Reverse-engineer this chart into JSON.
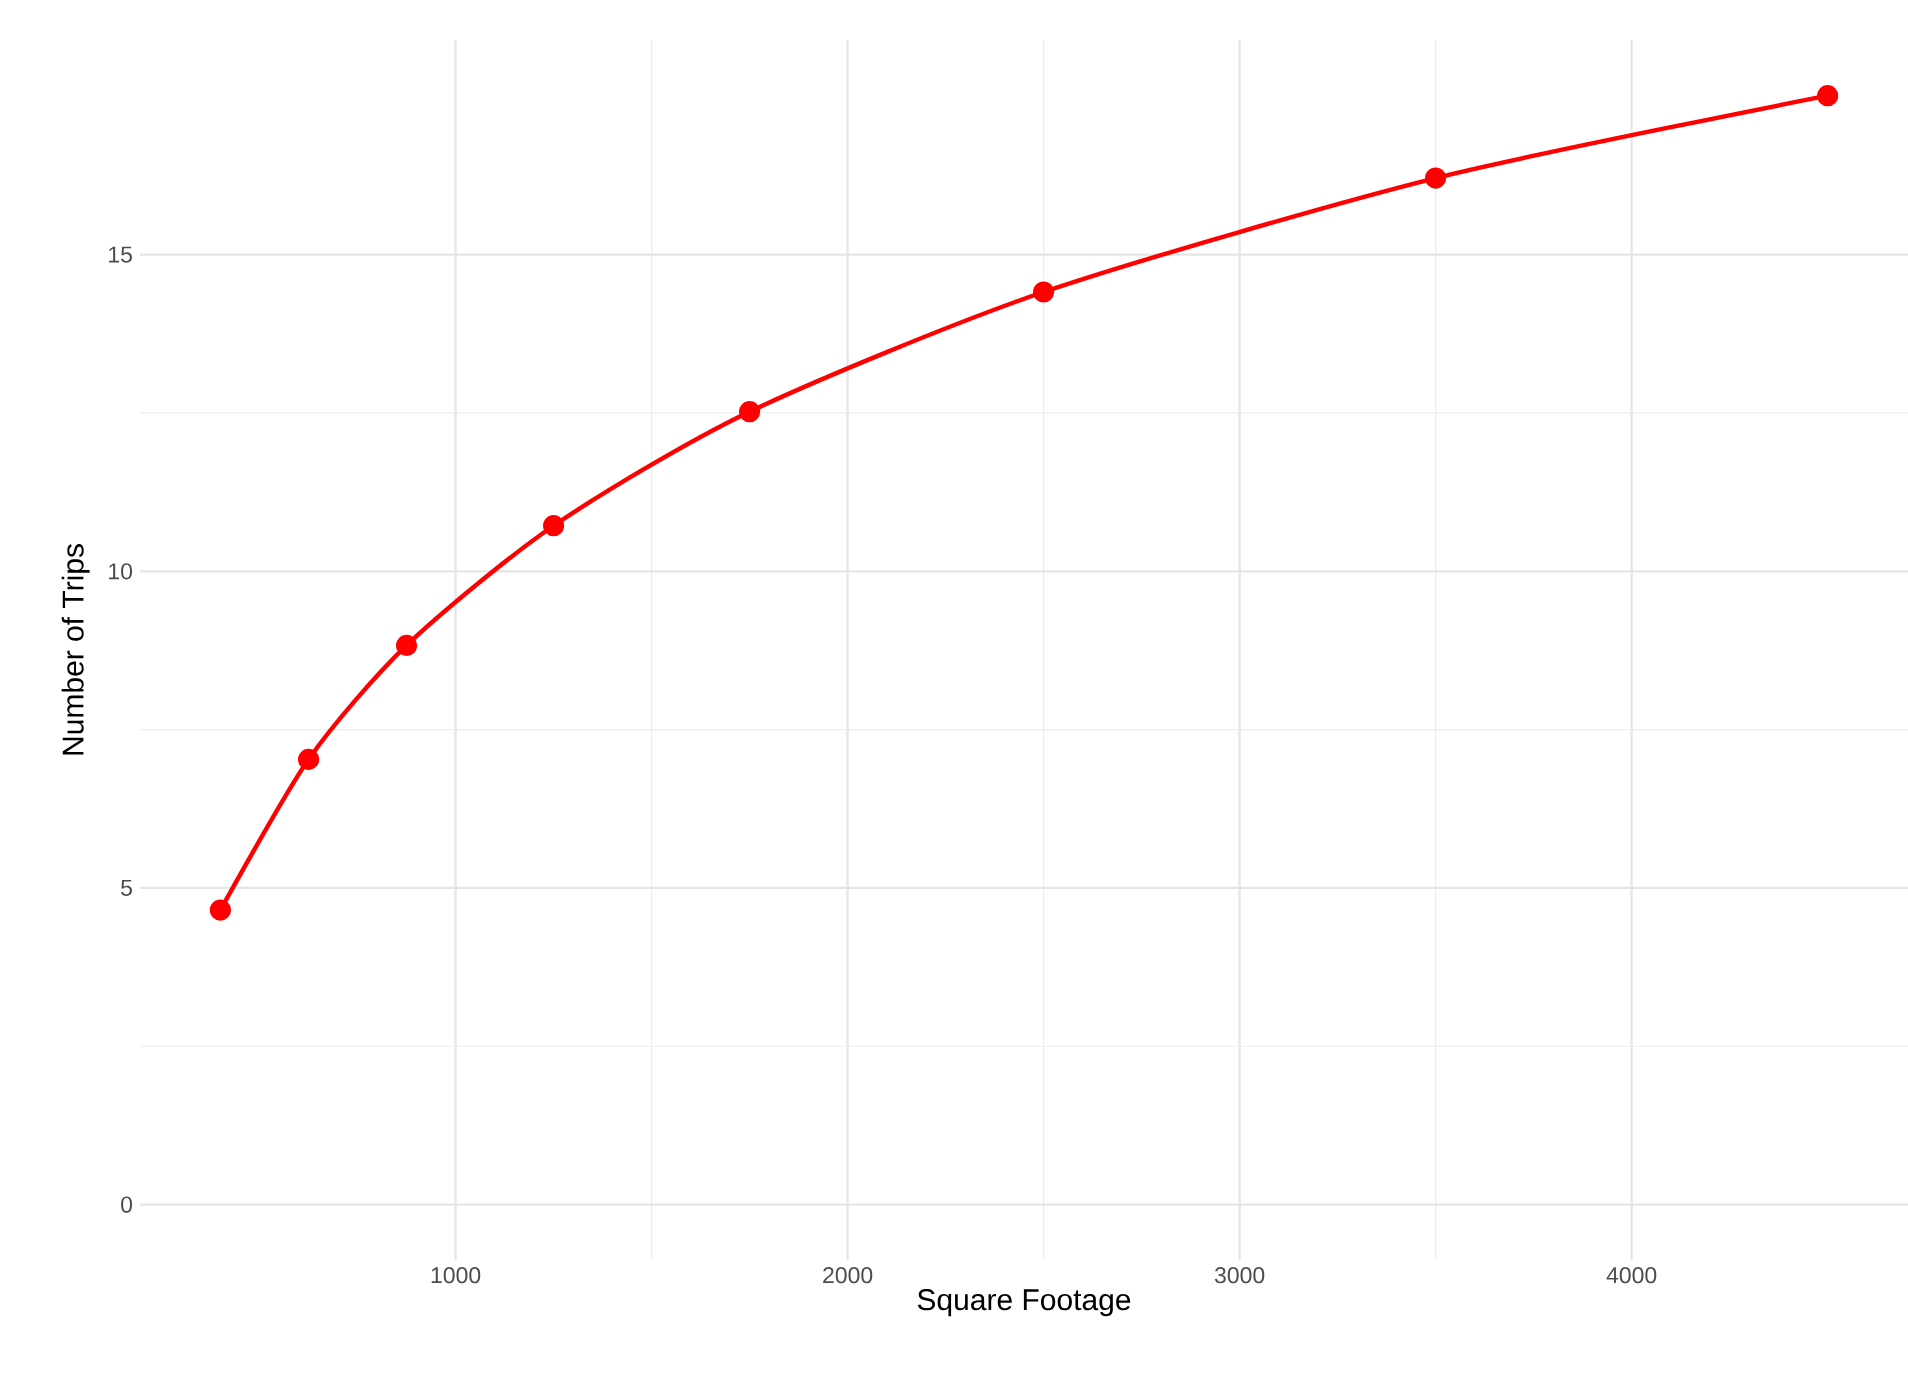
{
  "chart_data": {
    "type": "line",
    "xlabel": "Square Footage",
    "ylabel": "Number of Trips",
    "x": [
      400,
      625,
      875,
      1250,
      1750,
      2500,
      3500,
      4500
    ],
    "series": [
      {
        "color": "#ff0000",
        "values": [
          4.65,
          7.03,
          8.83,
          10.72,
          12.52,
          14.41,
          16.21,
          17.51
        ]
      }
    ],
    "xlim": [
      195,
      4705
    ],
    "ylim": [
      -0.875,
      18.39
    ],
    "xticks": [
      1000,
      2000,
      3000,
      4000
    ],
    "yticks": [
      0,
      5,
      10,
      15
    ],
    "grid": true,
    "marker": "circle",
    "line_style": "solid"
  }
}
